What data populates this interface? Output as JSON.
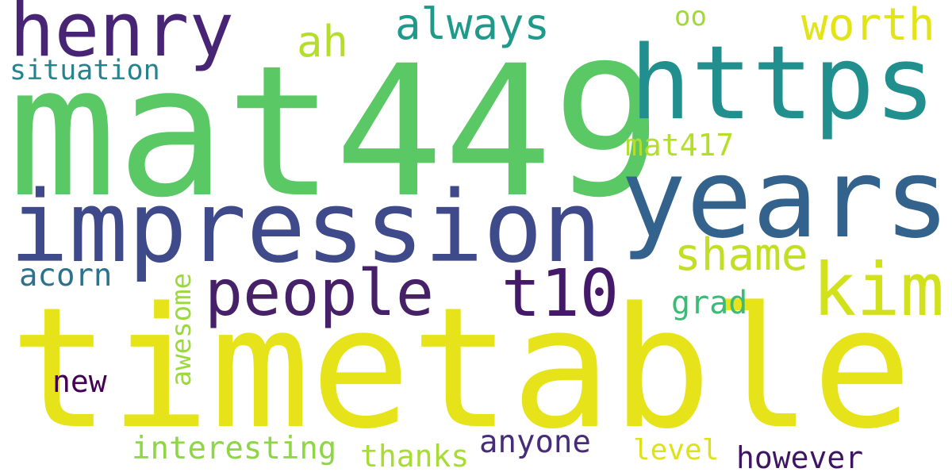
{
  "words": {
    "mat449": {
      "text": "mat449",
      "color": "#5ac864"
    },
    "timetable": {
      "text": "timetable",
      "color": "#e7e31a"
    },
    "impression": {
      "text": "impression",
      "color": "#3e4a89"
    },
    "years": {
      "text": "years",
      "color": "#33638d"
    },
    "https": {
      "text": "https",
      "color": "#218f8d"
    },
    "henry": {
      "text": "henry",
      "color": "#482475"
    },
    "people": {
      "text": "people",
      "color": "#462168"
    },
    "t10": {
      "text": "t10",
      "color": "#44196a"
    },
    "kim": {
      "text": "kim",
      "color": "#d1e11c"
    },
    "always": {
      "text": "always",
      "color": "#1f9a8a"
    },
    "worth": {
      "text": "worth",
      "color": "#e2e418"
    },
    "ah": {
      "text": "ah",
      "color": "#b5de2b"
    },
    "oo": {
      "text": "oo",
      "color": "#a0da39"
    },
    "situation": {
      "text": "situation",
      "color": "#26828e"
    },
    "mat417": {
      "text": "mat417",
      "color": "#b5de2b"
    },
    "shame": {
      "text": "shame",
      "color": "#c2df23"
    },
    "acorn": {
      "text": "acorn",
      "color": "#2c728e"
    },
    "grad": {
      "text": "grad",
      "color": "#3bbb75"
    },
    "awesome": {
      "text": "awesome",
      "color": "#9bd93c"
    },
    "new": {
      "text": "new",
      "color": "#440154"
    },
    "interesting": {
      "text": "interesting",
      "color": "#8ed645"
    },
    "thanks": {
      "text": "thanks",
      "color": "#a8db34"
    },
    "anyone": {
      "text": "anyone",
      "color": "#472c7a"
    },
    "level": {
      "text": "level",
      "color": "#dce319"
    },
    "however": {
      "text": "however",
      "color": "#3f1463"
    }
  }
}
